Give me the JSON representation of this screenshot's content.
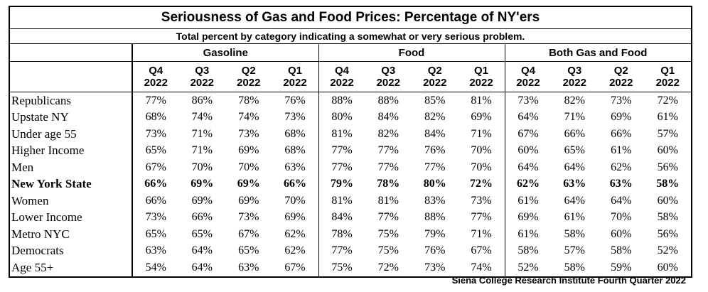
{
  "chart_data": {
    "type": "table",
    "title": "Seriousness of Gas and Food Prices:  Percentage of NY'ers",
    "subtitle": "Total percent by category indicating a somewhat or very serious problem.",
    "groups": [
      "Gasoline",
      "Food",
      "Both Gas and Food"
    ],
    "quarters": [
      {
        "q": "Q4",
        "y": "2022"
      },
      {
        "q": "Q3",
        "y": "2022"
      },
      {
        "q": "Q2",
        "y": "2022"
      },
      {
        "q": "Q1",
        "y": "2022"
      }
    ],
    "rows": [
      {
        "label": "Republicans",
        "values": [
          "77%",
          "86%",
          "78%",
          "76%",
          "88%",
          "88%",
          "85%",
          "81%",
          "73%",
          "82%",
          "73%",
          "72%"
        ]
      },
      {
        "label": "Upstate NY",
        "values": [
          "68%",
          "74%",
          "74%",
          "73%",
          "80%",
          "84%",
          "82%",
          "69%",
          "64%",
          "71%",
          "69%",
          "61%"
        ]
      },
      {
        "label": "Under age 55",
        "values": [
          "73%",
          "71%",
          "73%",
          "68%",
          "81%",
          "82%",
          "84%",
          "71%",
          "67%",
          "66%",
          "66%",
          "57%"
        ]
      },
      {
        "label": "Higher Income",
        "values": [
          "65%",
          "71%",
          "69%",
          "68%",
          "77%",
          "77%",
          "76%",
          "70%",
          "60%",
          "65%",
          "61%",
          "60%"
        ]
      },
      {
        "label": "Men",
        "values": [
          "67%",
          "70%",
          "70%",
          "63%",
          "77%",
          "77%",
          "77%",
          "70%",
          "64%",
          "64%",
          "62%",
          "56%"
        ]
      },
      {
        "label": "New York State",
        "bold": true,
        "values": [
          "66%",
          "69%",
          "69%",
          "66%",
          "79%",
          "78%",
          "80%",
          "72%",
          "62%",
          "63%",
          "63%",
          "58%"
        ]
      },
      {
        "label": "Women",
        "values": [
          "66%",
          "69%",
          "69%",
          "70%",
          "81%",
          "81%",
          "83%",
          "73%",
          "61%",
          "64%",
          "64%",
          "60%"
        ]
      },
      {
        "label": "Lower Income",
        "values": [
          "73%",
          "66%",
          "73%",
          "69%",
          "84%",
          "77%",
          "88%",
          "77%",
          "69%",
          "61%",
          "70%",
          "58%"
        ]
      },
      {
        "label": "Metro NYC",
        "values": [
          "65%",
          "65%",
          "67%",
          "62%",
          "78%",
          "75%",
          "79%",
          "71%",
          "61%",
          "58%",
          "60%",
          "56%"
        ]
      },
      {
        "label": "Democrats",
        "values": [
          "63%",
          "64%",
          "65%",
          "62%",
          "77%",
          "75%",
          "76%",
          "67%",
          "58%",
          "57%",
          "58%",
          "52%"
        ]
      },
      {
        "label": "Age 55+",
        "values": [
          "54%",
          "64%",
          "63%",
          "67%",
          "75%",
          "72%",
          "73%",
          "74%",
          "52%",
          "58%",
          "59%",
          "60%"
        ]
      }
    ],
    "source": "Siena College Research Institute Fourth Quarter 2022"
  }
}
